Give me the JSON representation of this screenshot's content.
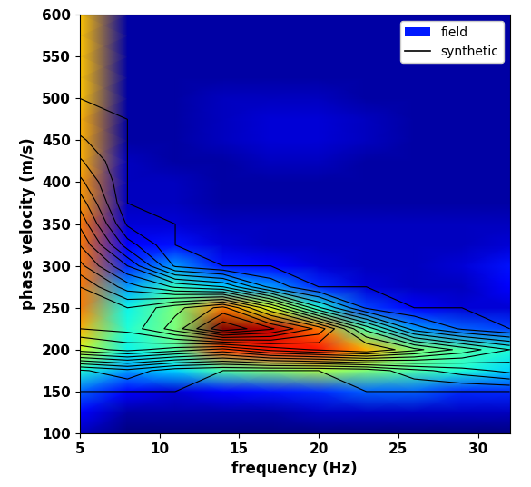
{
  "chart_data": {
    "type": "heatmap",
    "x_label": "frequency (Hz)",
    "y_label": "phase velocity (m/s)",
    "xlim": [
      5,
      32
    ],
    "ylim": [
      100,
      600
    ],
    "xticks": [
      5,
      10,
      15,
      20,
      25,
      30
    ],
    "yticks": [
      100,
      150,
      200,
      250,
      300,
      350,
      400,
      450,
      500,
      550,
      600
    ],
    "legend": "upper right",
    "x": [
      5,
      8,
      11,
      14,
      17,
      20,
      23,
      26,
      29,
      32
    ],
    "y": [
      100,
      125,
      150,
      175,
      200,
      225,
      250,
      275,
      300,
      325,
      350,
      375,
      400,
      425,
      450,
      475,
      500,
      525,
      550,
      575,
      600
    ],
    "series": [
      {
        "name": "field",
        "type": "heatmap",
        "values": [
          [
            0.1,
            0.05,
            0.05,
            0.05,
            0.05,
            0.05,
            0.05,
            0.05,
            0.05,
            0.05
          ],
          [
            0.15,
            0.08,
            0.08,
            0.08,
            0.08,
            0.1,
            0.1,
            0.1,
            0.1,
            0.1
          ],
          [
            0.25,
            0.15,
            0.12,
            0.15,
            0.18,
            0.2,
            0.25,
            0.25,
            0.2,
            0.2
          ],
          [
            0.4,
            0.3,
            0.35,
            0.45,
            0.5,
            0.55,
            0.5,
            0.45,
            0.4,
            0.35
          ],
          [
            0.6,
            0.38,
            0.45,
            0.8,
            0.85,
            0.85,
            0.7,
            0.5,
            0.45,
            0.4
          ],
          [
            0.7,
            0.4,
            0.5,
            0.95,
            0.9,
            0.75,
            0.45,
            0.3,
            0.25,
            0.22
          ],
          [
            0.75,
            0.38,
            0.5,
            0.75,
            0.6,
            0.4,
            0.22,
            0.15,
            0.12,
            0.12
          ],
          [
            0.75,
            0.3,
            0.42,
            0.35,
            0.3,
            0.2,
            0.12,
            0.1,
            0.1,
            0.15
          ],
          [
            0.75,
            0.2,
            0.3,
            0.18,
            0.15,
            0.12,
            0.1,
            0.1,
            0.12,
            0.18
          ],
          [
            0.75,
            0.15,
            0.18,
            0.12,
            0.1,
            0.1,
            0.1,
            0.1,
            0.1,
            0.12
          ],
          [
            0.75,
            0.12,
            0.12,
            0.1,
            0.1,
            0.1,
            0.1,
            0.1,
            0.1,
            0.1
          ],
          [
            0.72,
            0.1,
            0.1,
            0.08,
            0.08,
            0.08,
            0.08,
            0.08,
            0.08,
            0.08
          ],
          [
            0.72,
            0.1,
            0.1,
            0.08,
            0.08,
            0.08,
            0.08,
            0.08,
            0.08,
            0.08
          ],
          [
            0.7,
            0.1,
            0.08,
            0.08,
            0.1,
            0.1,
            0.08,
            0.08,
            0.08,
            0.08
          ],
          [
            0.7,
            0.08,
            0.08,
            0.1,
            0.12,
            0.12,
            0.1,
            0.08,
            0.08,
            0.08
          ],
          [
            0.7,
            0.08,
            0.08,
            0.1,
            0.12,
            0.12,
            0.1,
            0.08,
            0.08,
            0.08
          ],
          [
            0.68,
            0.08,
            0.08,
            0.1,
            0.1,
            0.1,
            0.08,
            0.08,
            0.08,
            0.08
          ],
          [
            0.68,
            0.08,
            0.08,
            0.08,
            0.08,
            0.08,
            0.08,
            0.08,
            0.08,
            0.08
          ],
          [
            0.68,
            0.08,
            0.08,
            0.08,
            0.08,
            0.08,
            0.08,
            0.08,
            0.08,
            0.08
          ],
          [
            0.68,
            0.08,
            0.08,
            0.08,
            0.08,
            0.08,
            0.08,
            0.08,
            0.08,
            0.08
          ],
          [
            0.68,
            0.08,
            0.08,
            0.08,
            0.08,
            0.08,
            0.08,
            0.08,
            0.08,
            0.08
          ]
        ]
      },
      {
        "name": "synthetic",
        "type": "contour",
        "color": "black",
        "values": [
          [
            0,
            0,
            0,
            0,
            0,
            0,
            0,
            0,
            0,
            0
          ],
          [
            0,
            0,
            0,
            0,
            0,
            0,
            0,
            0,
            0,
            0
          ],
          [
            0,
            0,
            0,
            0,
            0,
            0,
            0,
            0,
            0,
            0
          ],
          [
            0.05,
            0.1,
            0.02,
            0,
            0,
            0,
            0.02,
            0.1,
            0.15,
            0.2
          ],
          [
            0.45,
            0.5,
            0.45,
            0.4,
            0.5,
            0.55,
            0.6,
            0.5,
            0.4,
            0.3
          ],
          [
            0.6,
            0.62,
            0.75,
            0.95,
            0.85,
            0.7,
            0.4,
            0.15,
            0.05,
            0
          ],
          [
            0.65,
            0.6,
            0.7,
            0.8,
            0.55,
            0.25,
            0.05,
            0,
            0,
            0
          ],
          [
            0.6,
            0.45,
            0.35,
            0.3,
            0.1,
            0,
            0,
            0,
            0,
            0
          ],
          [
            0.5,
            0.3,
            0.05,
            0,
            0,
            0,
            0,
            0,
            0,
            0
          ],
          [
            0.42,
            0.15,
            0,
            0,
            0,
            0,
            0,
            0,
            0,
            0
          ],
          [
            0.35,
            0.05,
            0,
            0,
            0,
            0,
            0,
            0,
            0,
            0
          ],
          [
            0.28,
            0,
            0,
            0,
            0,
            0,
            0,
            0,
            0,
            0
          ],
          [
            0.2,
            0,
            0,
            0,
            0,
            0,
            0,
            0,
            0,
            0
          ],
          [
            0.13,
            0,
            0,
            0,
            0,
            0,
            0,
            0,
            0,
            0
          ],
          [
            0.07,
            0,
            0,
            0,
            0,
            0,
            0,
            0,
            0,
            0
          ],
          [
            0.03,
            0,
            0,
            0,
            0,
            0,
            0,
            0,
            0,
            0
          ],
          [
            0,
            0,
            0,
            0,
            0,
            0,
            0,
            0,
            0,
            0
          ],
          [
            0,
            0,
            0,
            0,
            0,
            0,
            0,
            0,
            0,
            0
          ],
          [
            0,
            0,
            0,
            0,
            0,
            0,
            0,
            0,
            0,
            0
          ],
          [
            0,
            0,
            0,
            0,
            0,
            0,
            0,
            0,
            0,
            0
          ],
          [
            0,
            0,
            0,
            0,
            0,
            0,
            0,
            0,
            0,
            0
          ]
        ]
      }
    ]
  }
}
